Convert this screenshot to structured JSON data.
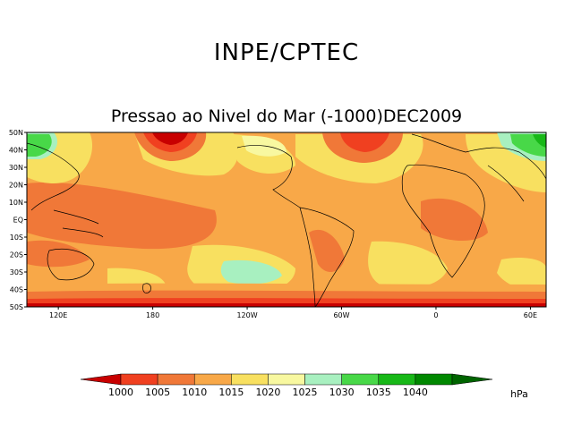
{
  "header": {
    "title": "INPE/CPTEC",
    "subtitle": "Pressao ao Nivel do Mar (-1000)DEC2009"
  },
  "map": {
    "lat_labels": [
      "50N",
      "40N",
      "30N",
      "20N",
      "10N",
      "EQ",
      "10S",
      "20S",
      "30S",
      "40S",
      "50S"
    ],
    "lon_labels": [
      "120E",
      "180",
      "120W",
      "60W",
      "0",
      "60E"
    ]
  },
  "legend": {
    "unit": "hPa",
    "levels": [
      "1000",
      "1005",
      "1010",
      "1015",
      "1020",
      "1025",
      "1030",
      "1035",
      "1040"
    ],
    "colors": [
      "#c80000",
      "#f04020",
      "#f07838",
      "#f8a848",
      "#f8e060",
      "#f8f8a0",
      "#a8f0c0",
      "#48d848",
      "#18b818",
      "#008800",
      "#006400"
    ]
  }
}
